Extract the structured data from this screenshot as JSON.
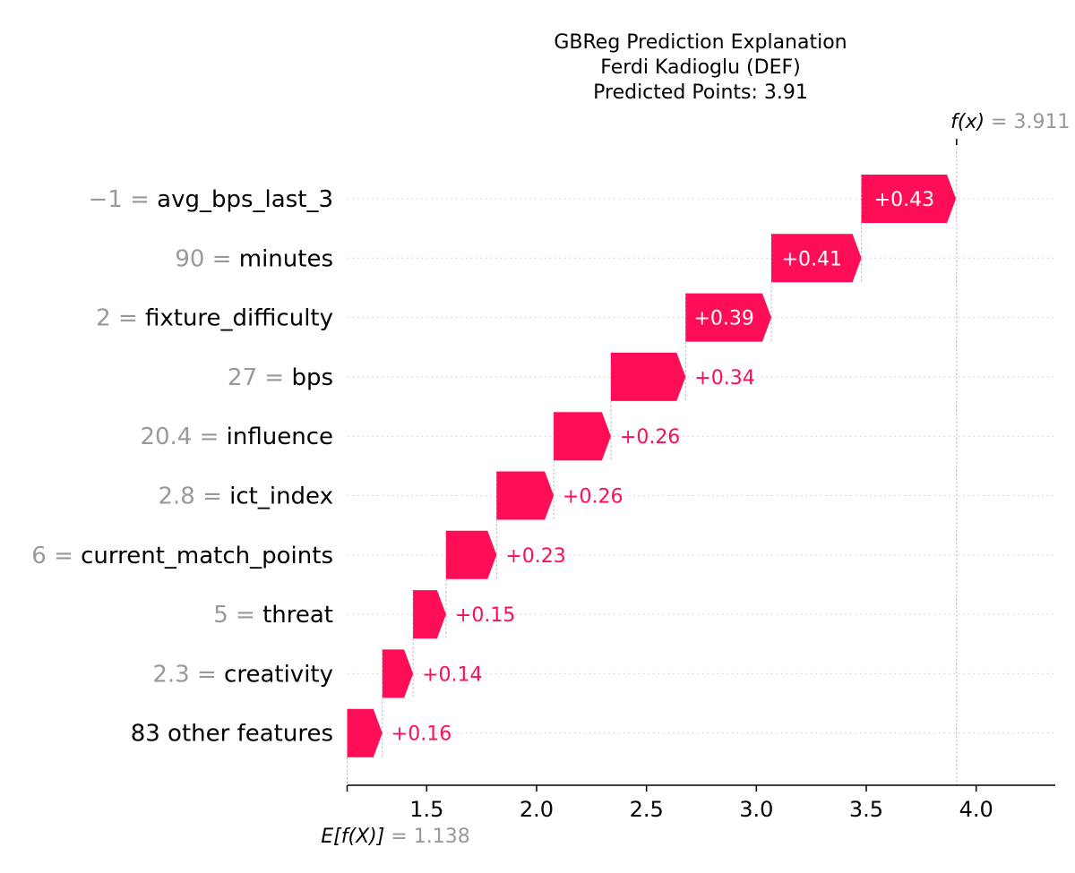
{
  "chart_data": {
    "type": "waterfall",
    "title": [
      "GBReg Prediction Explanation",
      "Ferdi Kadioglu (DEF)",
      "Predicted Points: 3.91"
    ],
    "base_value": 1.138,
    "base_label": {
      "expr": "E[f(X)]",
      "value": "1.138"
    },
    "output_value": 3.911,
    "output_label": {
      "expr": "f(x)",
      "value": "3.911"
    },
    "xlim": [
      1.14,
      4.36
    ],
    "xticks": [
      1.5,
      2.0,
      2.5,
      3.0,
      3.5,
      4.0
    ],
    "xtick_labels": [
      "1.5",
      "2.0",
      "2.5",
      "3.0",
      "3.5",
      "4.0"
    ],
    "features": [
      {
        "value": "−1",
        "name": "avg_bps_last_3",
        "contribution": 0.43,
        "label": "+0.43"
      },
      {
        "value": "90",
        "name": "minutes",
        "contribution": 0.41,
        "label": "+0.41"
      },
      {
        "value": "2",
        "name": "fixture_difficulty",
        "contribution": 0.39,
        "label": "+0.39"
      },
      {
        "value": "27",
        "name": "bps",
        "contribution": 0.34,
        "label": "+0.34"
      },
      {
        "value": "20.4",
        "name": "influence",
        "contribution": 0.26,
        "label": "+0.26"
      },
      {
        "value": "2.8",
        "name": "ict_index",
        "contribution": 0.26,
        "label": "+0.26"
      },
      {
        "value": "6",
        "name": "current_match_points",
        "contribution": 0.23,
        "label": "+0.23"
      },
      {
        "value": "5",
        "name": "threat",
        "contribution": 0.15,
        "label": "+0.15"
      },
      {
        "value": "2.3",
        "name": "creativity",
        "contribution": 0.14,
        "label": "+0.14"
      },
      {
        "value": "",
        "name": "83 other features",
        "contribution": 0.16,
        "label": "+0.16"
      }
    ],
    "colors": {
      "positive": "#ff0d57",
      "label_gray": "#999999"
    },
    "grid": true
  }
}
